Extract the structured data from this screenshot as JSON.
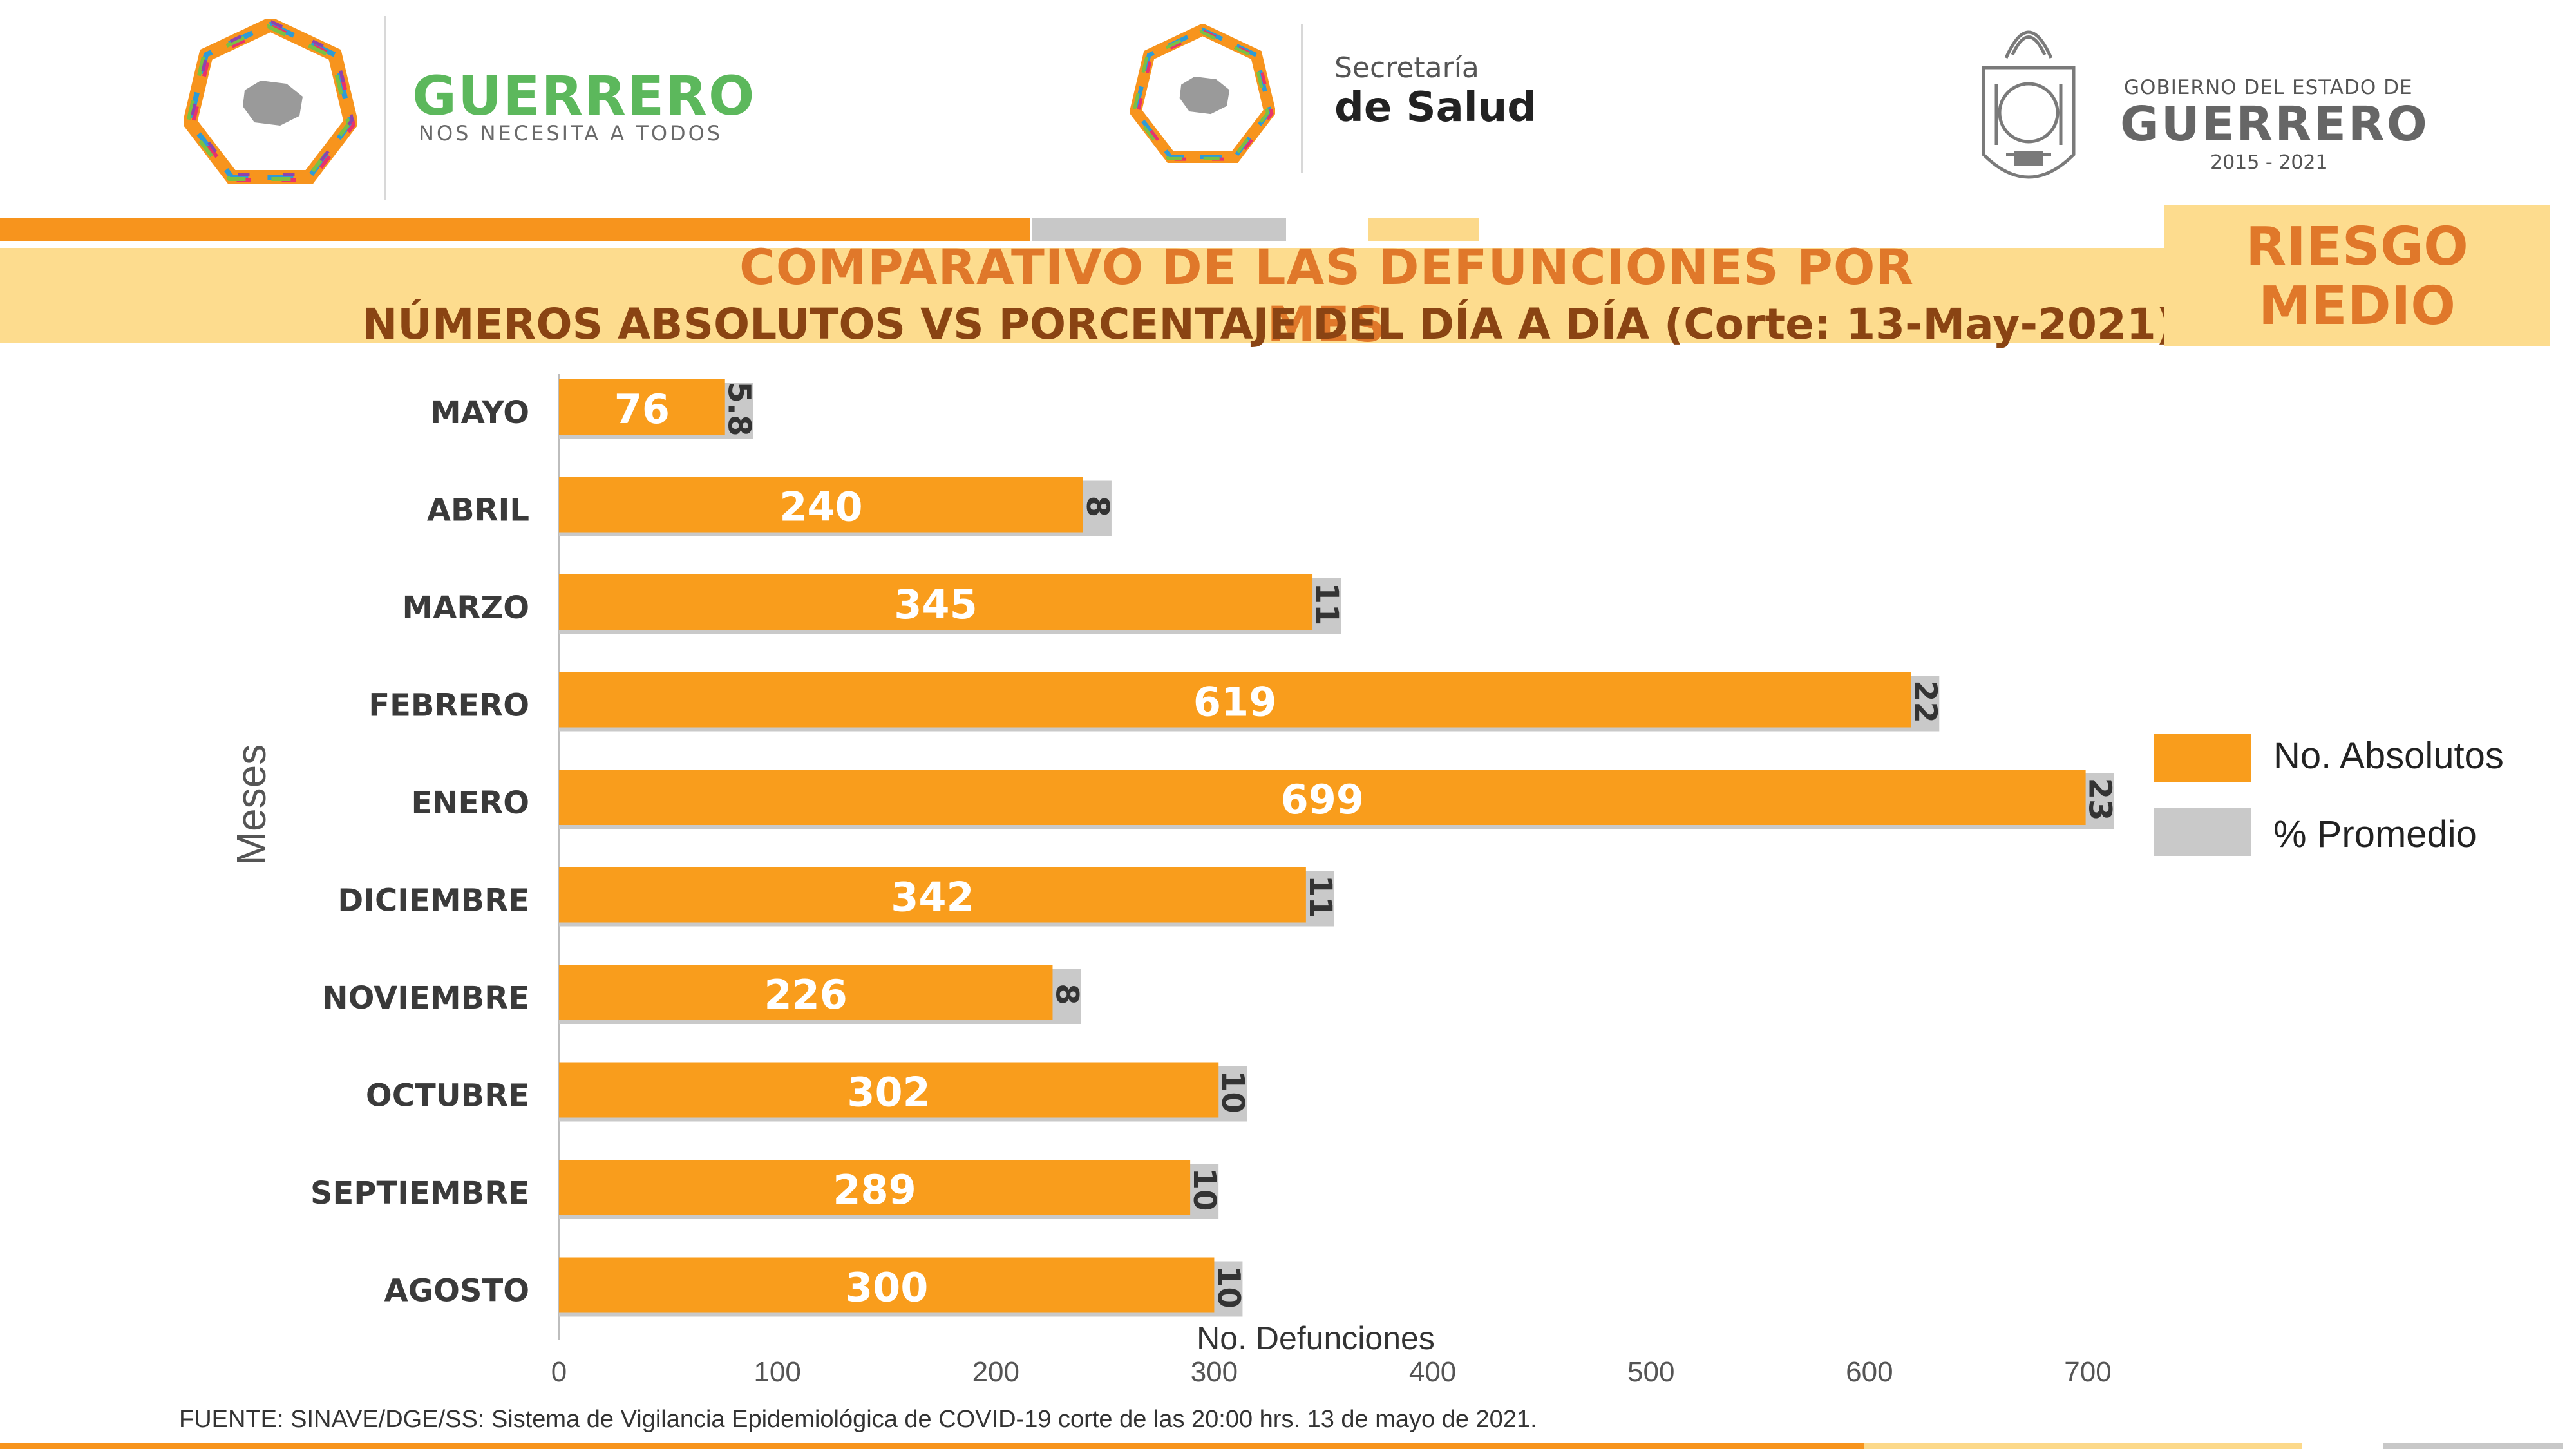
{
  "header": {
    "logo_left": {
      "brand": "GUERRERO",
      "tagline": "NOS NECESITA A TODOS"
    },
    "logo_center": {
      "line1": "Secretaría",
      "line2": "de Salud"
    },
    "logo_right": {
      "line1": "GOBIERNO DEL ESTADO DE",
      "line2": "GUERRERO",
      "line3": "2015 - 2021"
    }
  },
  "title": {
    "main": "COMPARATIVO DE LAS DEFUNCIONES POR MES",
    "sub": "NÚMEROS ABSOLUTOS VS PORCENTAJE DEL DÍA A DÍA   (Corte: 13-May-2021)"
  },
  "risk": {
    "line1": "RIESGO",
    "line2": "MEDIO"
  },
  "legend": [
    {
      "label": "No. Absolutos",
      "color": "#f99d1c"
    },
    {
      "label": "% Promedio",
      "color": "#c9c9c9"
    }
  ],
  "footnote": "FUENTE: SINAVE/DGE/SS: Sistema de Vigilancia Epidemiológica de COVID-19 corte de las 20:00 hrs. 13 de mayo  de 2021.",
  "colors": {
    "orange": "#f99d1c",
    "gray": "#c9c9c9",
    "title_orange": "#e0782a",
    "title_brown": "#8a4413",
    "band": "#fddc8e",
    "stripe_orange": "#f7941d",
    "stripe_gray": "#c8c8c8",
    "stripe_light": "#fcd98a"
  },
  "chart_data": {
    "type": "bar",
    "orientation": "horizontal",
    "categories": [
      "MAYO",
      "ABRIL",
      "MARZO",
      "FEBRERO",
      "ENERO",
      "DICIEMBRE",
      "NOVIEMBRE",
      "OCTUBRE",
      "SEPTIEMBRE",
      "AGOSTO"
    ],
    "series": [
      {
        "name": "No. Absolutos",
        "values": [
          76,
          240,
          345,
          619,
          699,
          342,
          226,
          302,
          289,
          300
        ],
        "labels": [
          "76",
          "240",
          "345",
          "619",
          "699",
          "342",
          "226",
          "302",
          "289",
          "300"
        ]
      },
      {
        "name": "% Promedio",
        "values": [
          5.8,
          8,
          11,
          22,
          23,
          11,
          8,
          10,
          10,
          10
        ],
        "labels": [
          "5.8",
          "8",
          "11",
          "22",
          "23",
          "11",
          "8",
          "10",
          "10",
          "10"
        ]
      }
    ],
    "xlabel": "No. Defunciones",
    "ylabel": "Meses",
    "xlim": [
      0,
      700
    ],
    "xticks": [
      0,
      100,
      200,
      300,
      400,
      500,
      600,
      700
    ],
    "grid": false,
    "legend_position": "right"
  }
}
